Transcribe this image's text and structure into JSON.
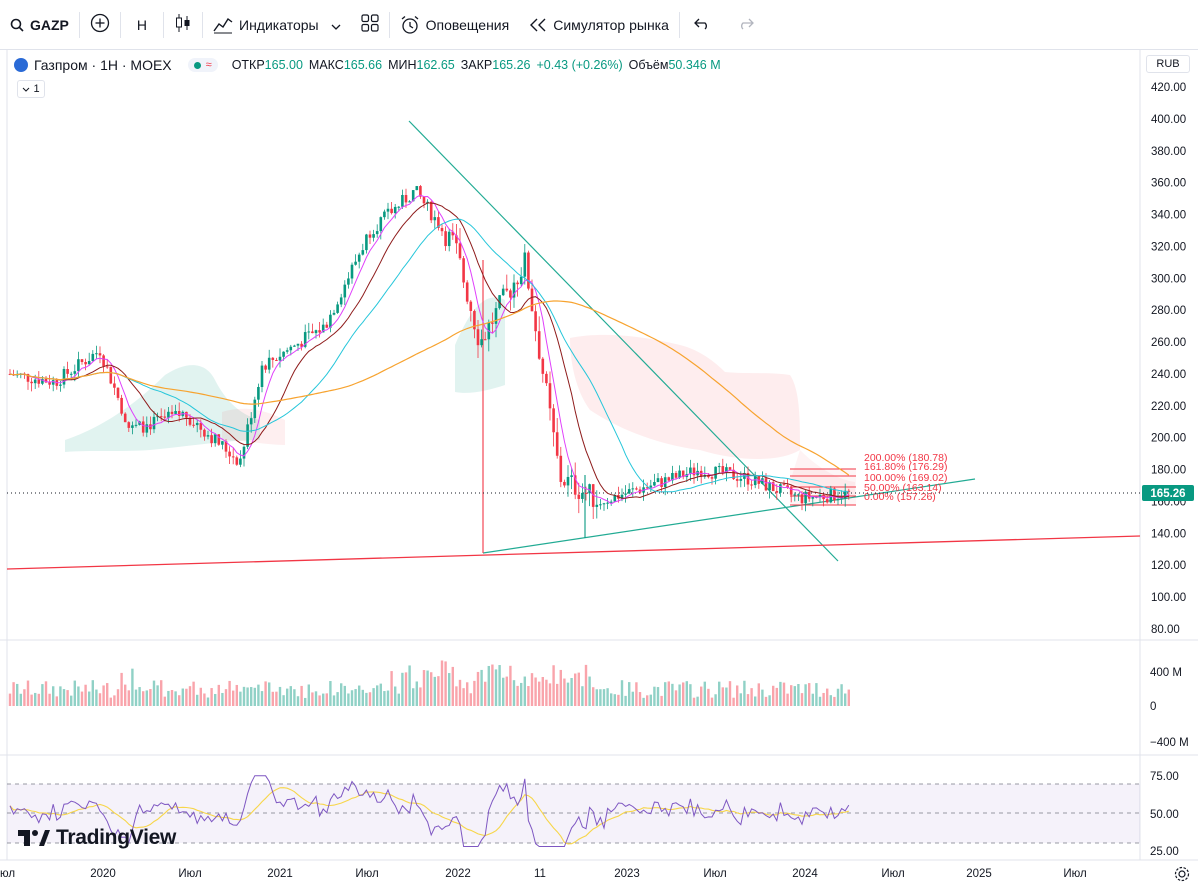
{
  "toolbar": {
    "symbol": "GAZP",
    "interval": "H",
    "indicators": "Индикаторы",
    "alerts": "Оповещения",
    "replay": "Симулятор рынка"
  },
  "legend": {
    "title": "Газпром · 1Н · MOEX",
    "open_label": "ОТКР",
    "open": "165.00",
    "high_label": "МАКС",
    "high": "165.66",
    "low_label": "МИН",
    "low": "162.65",
    "close_label": "ЗАКР",
    "close": "165.26",
    "change": "+0.43 (+0.26%)",
    "volume_label": "Объём",
    "volume": "50.346 M",
    "collapse_count": "1"
  },
  "currency": "RUB",
  "price_axis": [
    "420.00",
    "400.00",
    "380.00",
    "360.00",
    "340.00",
    "320.00",
    "300.00",
    "280.00",
    "260.00",
    "240.00",
    "220.00",
    "200.00",
    "180.00",
    "160.00",
    "140.00",
    "120.00",
    "100.00",
    "80.00"
  ],
  "last_price": "165.26",
  "volume_axis": [
    "400 M",
    "0",
    "−400 M"
  ],
  "rsi_axis": [
    "75.00",
    "50.00",
    "25.00"
  ],
  "time_axis": [
    "юл",
    "2020",
    "Июл",
    "2021",
    "Июл",
    "2022",
    "11",
    "2023",
    "Июл",
    "2024",
    "Июл",
    "2025",
    "Июл"
  ],
  "fib_levels": [
    "200.00% (180.78)",
    "161.80% (176.29)",
    "100.00% (169.02)",
    "50.00% (163.14)",
    "0.00% (157.26)"
  ],
  "brand": "TradingView",
  "colors": {
    "up": "#089981",
    "down": "#f23645",
    "accent": "#2962ff",
    "ma_orange": "#f7a32f",
    "ma_teal": "#26c6da",
    "ma_pink": "#e040fb"
  },
  "chart_data": {
    "type": "candlestick",
    "instrument": "Газпром · 1Н · MOEX",
    "x": [
      "2019-07",
      "2019-10",
      "2020-01",
      "2020-04",
      "2020-07",
      "2020-10",
      "2021-01",
      "2021-04",
      "2021-07",
      "2021-10",
      "2022-01",
      "2022-04",
      "2022-07",
      "2022-10",
      "2023-01",
      "2023-04",
      "2023-07",
      "2023-10",
      "2024-01",
      "2024-03"
    ],
    "close": [
      240,
      235,
      255,
      205,
      215,
      185,
      245,
      270,
      330,
      355,
      320,
      260,
      310,
      175,
      160,
      170,
      180,
      175,
      162,
      165.26
    ],
    "ylim": [
      80,
      420
    ],
    "last_close": 165.26,
    "fibonacci": [
      {
        "level": "200.00%",
        "value": 180.78
      },
      {
        "level": "161.80%",
        "value": 176.29
      },
      {
        "level": "100.00%",
        "value": 169.02
      },
      {
        "level": "50.00%",
        "value": 163.14
      },
      {
        "level": "0.00%",
        "value": 157.26
      }
    ]
  }
}
